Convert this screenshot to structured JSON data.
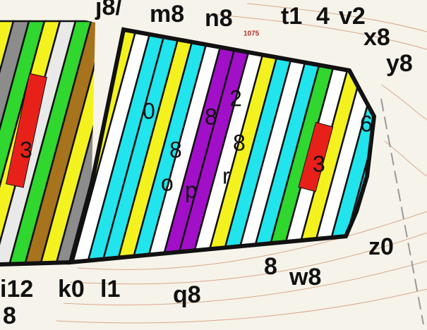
{
  "labels": [
    "j8/",
    "m8",
    "n8",
    "t1",
    "4",
    "v2",
    "x8",
    "y8",
    "z0",
    "w8",
    "8",
    "q8",
    "l1",
    "k0",
    "i12",
    "8",
    "0",
    "8",
    "8",
    "2",
    "8",
    "o",
    "p",
    "r",
    "6",
    "3",
    "3"
  ],
  "parcel_number": "1075"
}
